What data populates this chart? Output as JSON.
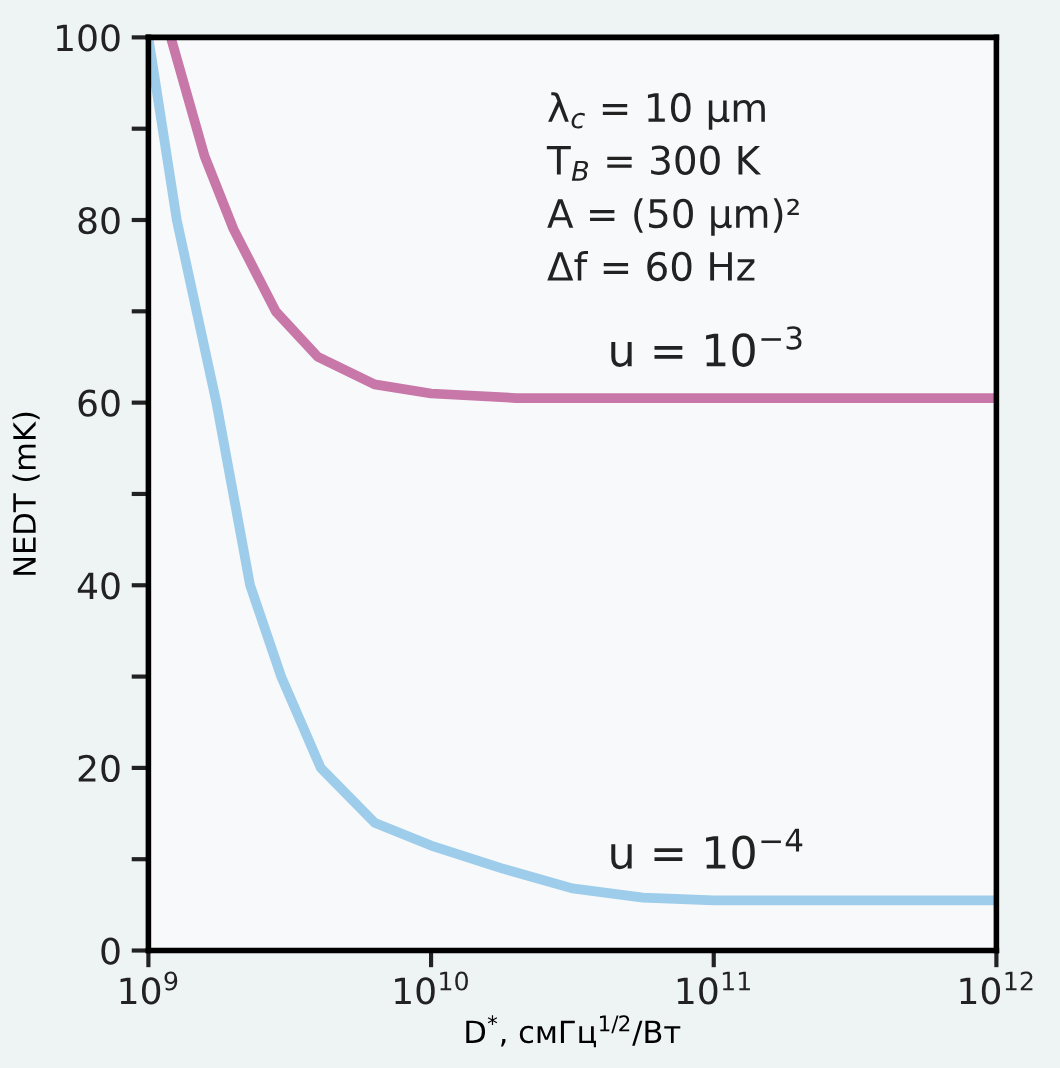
{
  "chart_data": {
    "type": "line",
    "xlabel": "D$^{*}$, смГц$^{1/2}$/Вт",
    "ylabel": "NEDT (mK)",
    "log": "x",
    "xlim": [
      1000000000.0,
      1000000000000.0
    ],
    "ylim": [
      0,
      100
    ],
    "xticks": [
      {
        "value": 1000000000.0,
        "label": "10$^{9}$"
      },
      {
        "value": 10000000000.0,
        "label": "10$^{10}$"
      },
      {
        "value": 100000000000.0,
        "label": "10$^{11}$"
      },
      {
        "value": 1000000000000.0,
        "label": "10$^{12}$"
      }
    ],
    "yticks": [
      0,
      {
        "value": 10,
        "label": null
      },
      20,
      {
        "value": 30,
        "label": null
      },
      40,
      {
        "value": 50,
        "label": null
      },
      60,
      {
        "value": 70,
        "label": null
      },
      80,
      {
        "value": 90,
        "label": null
      },
      100
    ],
    "grid": false,
    "legend": false,
    "marker": "none",
    "line_style": "solid",
    "annotations": [
      "λ$_{c}$ = 10 μm",
      "T$_{B}$ = 300 K",
      "A = (50 μm)²",
      "Δf = 60 Hz"
    ],
    "series": [
      {
        "name": "u = 10$^{−3}$",
        "color": "#c878a8",
        "x": [
          1200000000.0,
          1580000000.0,
          2000000000.0,
          2820000000.0,
          3980000000.0,
          6310000000.0,
          10000000000.0,
          20000000000.0,
          1000000000000.0
        ],
        "values": [
          100,
          87,
          79,
          70,
          65,
          62,
          61,
          60.5,
          60.5
        ]
      },
      {
        "name": "u = 10$^{−4}$",
        "color": "#9dcdeb",
        "x": [
          1000000000.0,
          1260000000.0,
          1740000000.0,
          2290000000.0,
          2950000000.0,
          4070000000.0,
          6310000000.0,
          10000000000.0,
          17800000000.0,
          31600000000.0,
          56200000000.0,
          100000000000.0,
          1000000000000.0
        ],
        "values": [
          100,
          80,
          60,
          40,
          30,
          20,
          14,
          11.5,
          9,
          6.8,
          5.8,
          5.5,
          5.5
        ]
      }
    ]
  }
}
